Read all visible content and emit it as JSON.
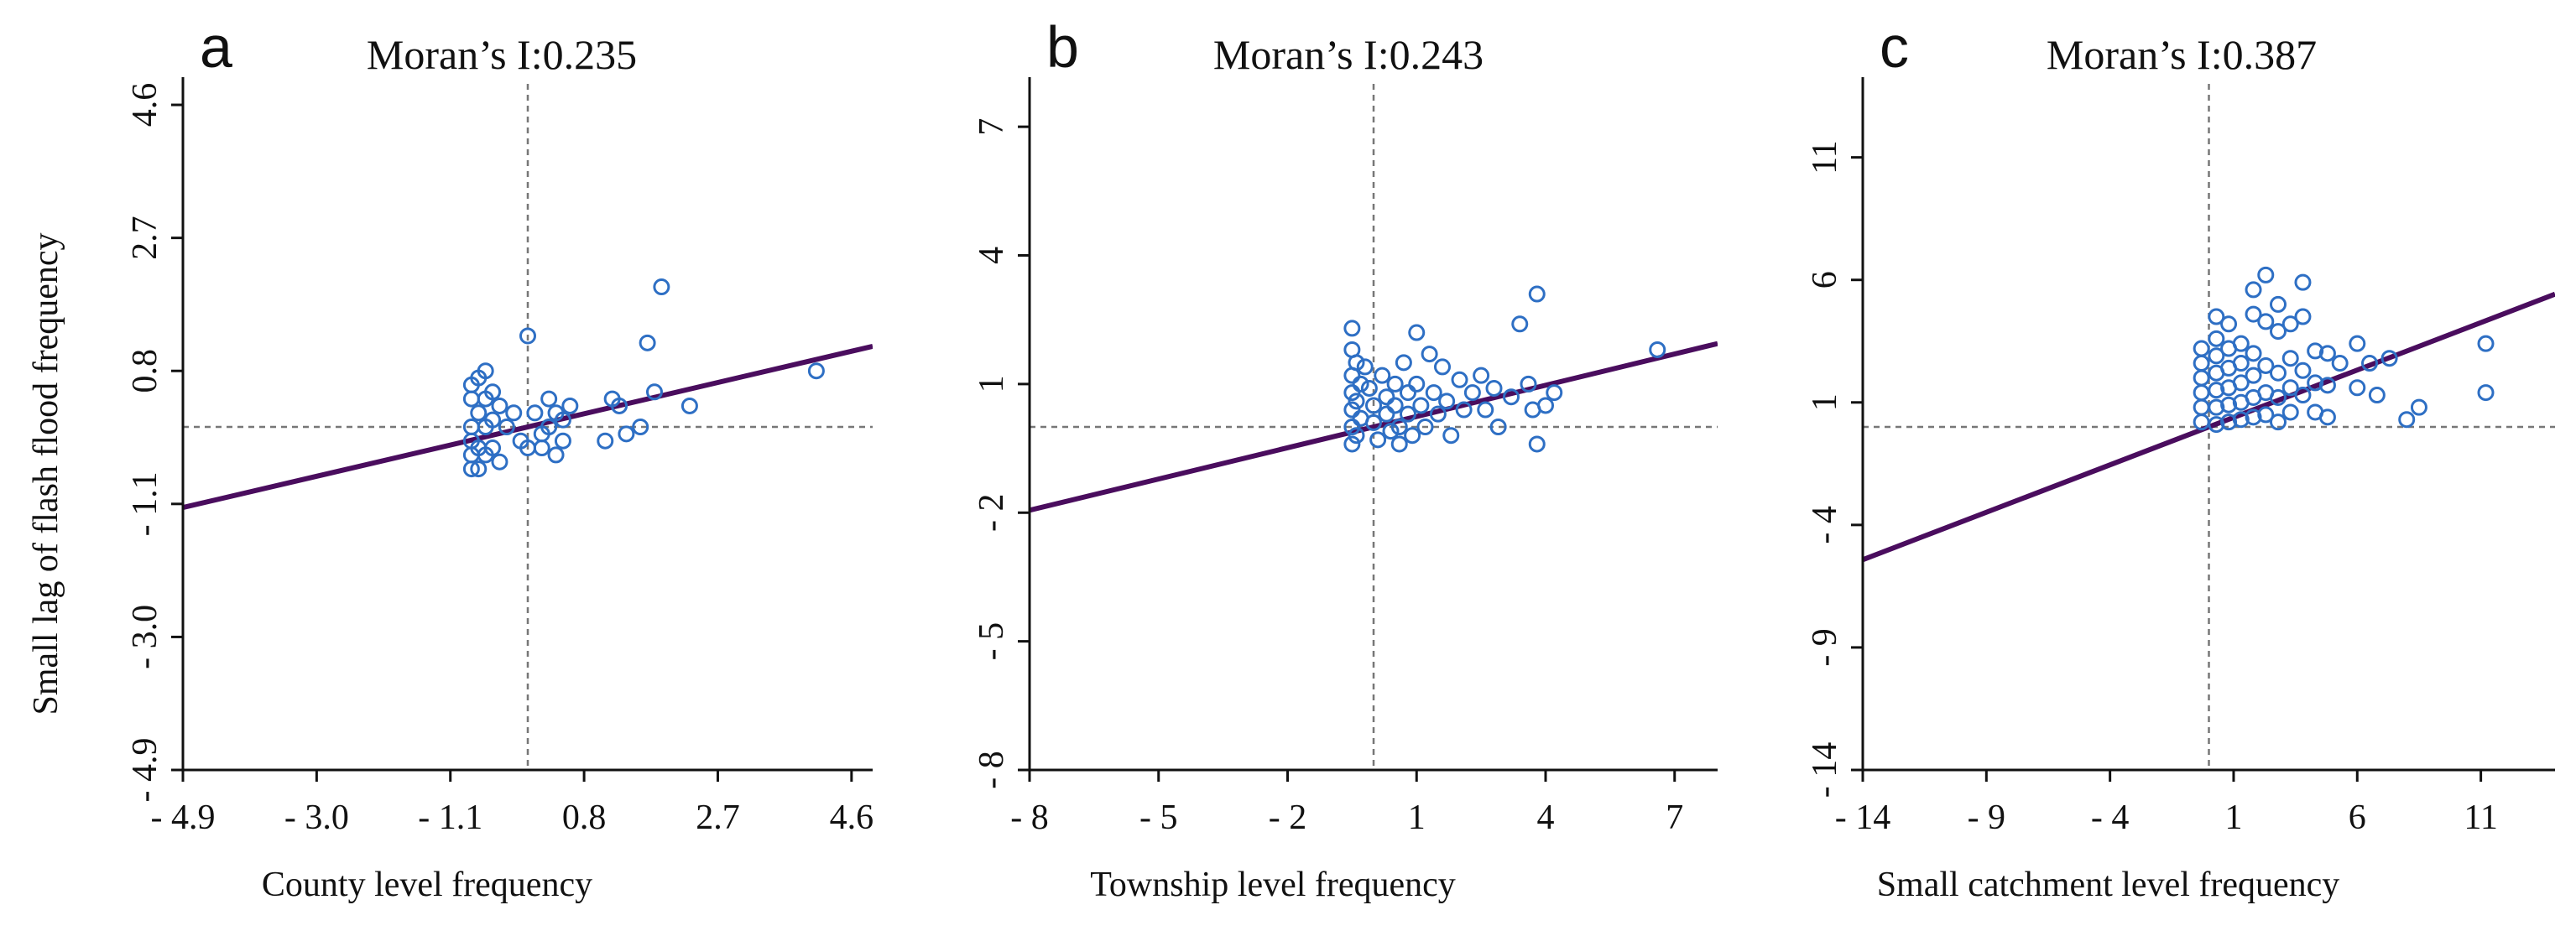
{
  "figure": {
    "y_axis_title": "Small lag of flash flood frequency"
  },
  "chart_data": [
    {
      "type": "scatter",
      "panel_letter": "a",
      "title": "Moran’s I:0.235",
      "xlabel": "County level frequency",
      "ylabel": "Small lag of flash flood frequency",
      "xlim": [
        -4.9,
        4.9
      ],
      "ylim": [
        -4.9,
        4.9
      ],
      "xticks": [
        -4.9,
        -3.0,
        -1.1,
        0.8,
        2.7,
        4.6
      ],
      "xtick_labels": [
        "- 4.9",
        "- 3.0",
        "- 1.1",
        "0.8",
        "2.7",
        "4.6"
      ],
      "yticks": [
        -4.9,
        -3.0,
        -1.1,
        0.8,
        2.7,
        4.6
      ],
      "ytick_labels": [
        "- 4.9",
        "- 3.0",
        "- 1.1",
        "0.8",
        "2.7",
        "4.6"
      ],
      "ref_x": 0,
      "ref_y": 0,
      "fit_line": {
        "slope": 0.235,
        "intercept": 0
      },
      "points": [
        [
          -0.8,
          0.6
        ],
        [
          -0.7,
          0.7
        ],
        [
          -0.6,
          0.8
        ],
        [
          -0.8,
          0.4
        ],
        [
          -0.6,
          0.4
        ],
        [
          -0.5,
          0.5
        ],
        [
          -0.7,
          0.2
        ],
        [
          -0.8,
          0.0
        ],
        [
          -0.6,
          0.0
        ],
        [
          -0.5,
          0.1
        ],
        [
          -0.8,
          -0.2
        ],
        [
          -0.7,
          -0.3
        ],
        [
          -0.8,
          -0.4
        ],
        [
          -0.6,
          -0.4
        ],
        [
          -0.5,
          -0.3
        ],
        [
          -0.8,
          -0.6
        ],
        [
          -0.7,
          -0.6
        ],
        [
          -0.4,
          0.3
        ],
        [
          -0.4,
          -0.5
        ],
        [
          -0.3,
          0.0
        ],
        [
          -0.2,
          0.2
        ],
        [
          -0.1,
          -0.2
        ],
        [
          0.0,
          -0.3
        ],
        [
          0.0,
          1.3
        ],
        [
          0.1,
          0.2
        ],
        [
          0.2,
          -0.1
        ],
        [
          0.2,
          -0.3
        ],
        [
          0.3,
          0.4
        ],
        [
          0.3,
          0.0
        ],
        [
          0.4,
          0.2
        ],
        [
          0.4,
          -0.4
        ],
        [
          0.5,
          0.1
        ],
        [
          0.5,
          -0.2
        ],
        [
          0.6,
          0.3
        ],
        [
          1.1,
          -0.2
        ],
        [
          1.2,
          0.4
        ],
        [
          1.3,
          0.3
        ],
        [
          1.4,
          -0.1
        ],
        [
          1.6,
          0.0
        ],
        [
          1.7,
          1.2
        ],
        [
          1.8,
          0.5
        ],
        [
          1.9,
          2.0
        ],
        [
          2.3,
          0.3
        ],
        [
          4.1,
          0.8
        ]
      ]
    },
    {
      "type": "scatter",
      "panel_letter": "b",
      "title": "Moran’s I:0.243",
      "xlabel": "Township level frequency",
      "ylabel": "",
      "xlim": [
        -8,
        8
      ],
      "ylim": [
        -8,
        8
      ],
      "xticks": [
        -8,
        -5,
        -2,
        1,
        4,
        7
      ],
      "xtick_labels": [
        "- 8",
        "- 5",
        "- 2",
        "1",
        "4",
        "7"
      ],
      "yticks": [
        -8,
        -5,
        -2,
        1,
        4,
        7
      ],
      "ytick_labels": [
        "- 8",
        "- 5",
        "- 2",
        "1",
        "4",
        "7"
      ],
      "ref_x": 0,
      "ref_y": 0,
      "fit_line": {
        "slope": 0.243,
        "intercept": 0
      },
      "points": [
        [
          -0.5,
          2.3
        ],
        [
          -0.5,
          1.8
        ],
        [
          -0.4,
          1.5
        ],
        [
          -0.5,
          1.2
        ],
        [
          -0.3,
          1.0
        ],
        [
          -0.5,
          0.8
        ],
        [
          -0.4,
          0.6
        ],
        [
          -0.5,
          0.4
        ],
        [
          -0.3,
          0.2
        ],
        [
          -0.5,
          0.0
        ],
        [
          -0.4,
          -0.2
        ],
        [
          -0.5,
          -0.4
        ],
        [
          -0.2,
          1.4
        ],
        [
          -0.1,
          0.9
        ],
        [
          0.0,
          0.5
        ],
        [
          0.0,
          0.1
        ],
        [
          0.1,
          -0.3
        ],
        [
          0.2,
          1.2
        ],
        [
          0.3,
          0.7
        ],
        [
          0.3,
          0.3
        ],
        [
          0.4,
          -0.1
        ],
        [
          0.5,
          1.0
        ],
        [
          0.5,
          0.5
        ],
        [
          0.6,
          0.0
        ],
        [
          0.6,
          -0.4
        ],
        [
          0.7,
          1.5
        ],
        [
          0.8,
          0.8
        ],
        [
          0.8,
          0.3
        ],
        [
          0.9,
          -0.2
        ],
        [
          1.0,
          2.2
        ],
        [
          1.0,
          1.0
        ],
        [
          1.1,
          0.5
        ],
        [
          1.2,
          0.0
        ],
        [
          1.3,
          1.7
        ],
        [
          1.4,
          0.8
        ],
        [
          1.5,
          0.3
        ],
        [
          1.6,
          1.4
        ],
        [
          1.7,
          0.6
        ],
        [
          1.8,
          -0.2
        ],
        [
          2.0,
          1.1
        ],
        [
          2.1,
          0.4
        ],
        [
          2.3,
          0.8
        ],
        [
          2.5,
          1.2
        ],
        [
          2.6,
          0.4
        ],
        [
          2.8,
          0.9
        ],
        [
          2.9,
          0.0
        ],
        [
          3.2,
          0.7
        ],
        [
          3.4,
          2.4
        ],
        [
          3.6,
          1.0
        ],
        [
          3.7,
          0.4
        ],
        [
          3.8,
          3.1
        ],
        [
          3.8,
          -0.4
        ],
        [
          4.0,
          0.5
        ],
        [
          4.2,
          0.8
        ],
        [
          6.6,
          1.8
        ]
      ]
    },
    {
      "type": "scatter",
      "panel_letter": "c",
      "title": "Moran’s I:0.387",
      "xlabel": "Small catchment level frequency",
      "ylabel": "",
      "xlim": [
        -14,
        14
      ],
      "ylim": [
        -14,
        14
      ],
      "xticks": [
        -14,
        -9,
        -4,
        1,
        6,
        11
      ],
      "xtick_labels": [
        "- 14",
        "- 9",
        "- 4",
        "1",
        "6",
        "11"
      ],
      "yticks": [
        -14,
        -9,
        -4,
        1,
        6,
        11
      ],
      "ytick_labels": [
        "- 14",
        "- 9",
        "- 4",
        "1",
        "6",
        "11"
      ],
      "ref_x": 0,
      "ref_y": 0,
      "fit_line": {
        "slope": 0.387,
        "intercept": 0
      },
      "points": [
        [
          -0.3,
          3.2
        ],
        [
          -0.3,
          2.6
        ],
        [
          -0.3,
          2.0
        ],
        [
          -0.3,
          1.4
        ],
        [
          -0.3,
          0.8
        ],
        [
          -0.3,
          0.2
        ],
        [
          0.3,
          4.5
        ],
        [
          0.3,
          3.6
        ],
        [
          0.3,
          2.9
        ],
        [
          0.3,
          2.2
        ],
        [
          0.3,
          1.5
        ],
        [
          0.3,
          0.8
        ],
        [
          0.3,
          0.1
        ],
        [
          0.8,
          4.2
        ],
        [
          0.8,
          3.2
        ],
        [
          0.8,
          2.4
        ],
        [
          0.8,
          1.6
        ],
        [
          0.8,
          0.9
        ],
        [
          0.8,
          0.2
        ],
        [
          1.3,
          3.4
        ],
        [
          1.3,
          2.6
        ],
        [
          1.3,
          1.8
        ],
        [
          1.3,
          1.0
        ],
        [
          1.3,
          0.3
        ],
        [
          1.8,
          5.6
        ],
        [
          1.8,
          4.6
        ],
        [
          1.8,
          3.0
        ],
        [
          1.8,
          2.1
        ],
        [
          1.8,
          1.2
        ],
        [
          1.8,
          0.4
        ],
        [
          2.3,
          6.2
        ],
        [
          2.3,
          4.3
        ],
        [
          2.3,
          2.5
        ],
        [
          2.3,
          1.4
        ],
        [
          2.3,
          0.5
        ],
        [
          2.8,
          5.0
        ],
        [
          2.8,
          3.9
        ],
        [
          2.8,
          2.2
        ],
        [
          2.8,
          1.2
        ],
        [
          2.8,
          0.2
        ],
        [
          3.3,
          4.2
        ],
        [
          3.3,
          2.8
        ],
        [
          3.3,
          1.6
        ],
        [
          3.3,
          0.6
        ],
        [
          3.8,
          5.9
        ],
        [
          3.8,
          4.5
        ],
        [
          3.8,
          2.3
        ],
        [
          3.8,
          1.3
        ],
        [
          4.3,
          3.1
        ],
        [
          4.3,
          1.8
        ],
        [
          4.3,
          0.6
        ],
        [
          4.8,
          3.0
        ],
        [
          4.8,
          1.7
        ],
        [
          4.8,
          0.4
        ],
        [
          5.3,
          2.6
        ],
        [
          6.0,
          3.4
        ],
        [
          6.0,
          1.6
        ],
        [
          6.5,
          2.6
        ],
        [
          6.8,
          1.3
        ],
        [
          7.3,
          2.8
        ],
        [
          8.0,
          0.3
        ],
        [
          8.5,
          0.8
        ],
        [
          11.2,
          3.4
        ],
        [
          11.2,
          1.4
        ]
      ]
    }
  ]
}
